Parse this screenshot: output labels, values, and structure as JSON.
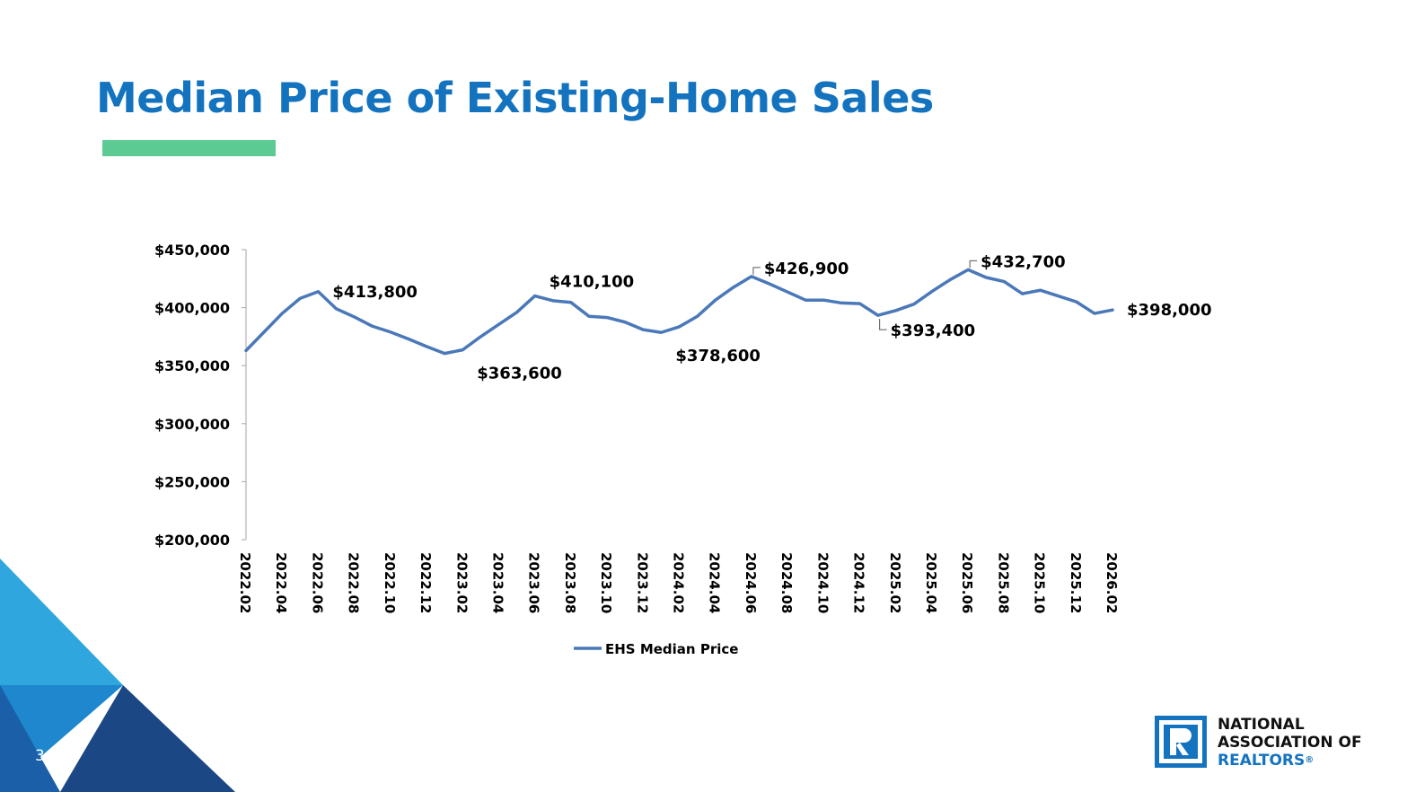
{
  "slide": {
    "title": "Median Price of Existing-Home Sales",
    "number": "3",
    "colors": {
      "title": "#1473bf",
      "accent": "#5ccb93",
      "series": "#4a78b9",
      "corner_light": "#2fa7de",
      "corner_mid": "#1e87cd",
      "corner_dark": "#1c4785"
    }
  },
  "logo": {
    "line1": "NATIONAL",
    "line2": "ASSOCIATION OF",
    "line3": "REALTORS",
    "registered": "®",
    "icon": "realtor-r-icon"
  },
  "chart_data": {
    "type": "line",
    "title": "",
    "xlabel": "",
    "ylabel": "",
    "ylim": [
      200000,
      450000
    ],
    "yticks": [
      200000,
      250000,
      300000,
      350000,
      400000,
      450000
    ],
    "ytick_labels": [
      "$200,000",
      "$250,000",
      "$300,000",
      "$350,000",
      "$400,000",
      "$450,000"
    ],
    "x": [
      "2022.02",
      "2022.03",
      "2022.04",
      "2022.05",
      "2022.06",
      "2022.07",
      "2022.08",
      "2022.09",
      "2022.10",
      "2022.11",
      "2022.12",
      "2023.01",
      "2023.02",
      "2023.03",
      "2023.04",
      "2023.05",
      "2023.06",
      "2023.07",
      "2023.08",
      "2023.09",
      "2023.10",
      "2023.11",
      "2023.12",
      "2024.01",
      "2024.02",
      "2024.03",
      "2024.04",
      "2024.05",
      "2024.06",
      "2024.07",
      "2024.08",
      "2024.09",
      "2024.10",
      "2024.11",
      "2024.12",
      "2025.01",
      "2025.02",
      "2025.03",
      "2025.04",
      "2025.05",
      "2025.06",
      "2025.07",
      "2025.08",
      "2025.09",
      "2025.10",
      "2025.11",
      "2025.12",
      "2026.01",
      "2026.02"
    ],
    "xtick_labels": [
      "2022.02",
      "2022.04",
      "2022.06",
      "2022.08",
      "2022.10",
      "2022.12",
      "2023.02",
      "2023.04",
      "2023.06",
      "2023.08",
      "2023.10",
      "2023.12",
      "2024.02",
      "2024.04",
      "2024.06",
      "2024.08",
      "2024.10",
      "2024.12",
      "2025.02",
      "2025.04",
      "2025.06",
      "2025.08",
      "2025.10",
      "2025.12",
      "2026.02"
    ],
    "series": [
      {
        "name": "EHS Median Price",
        "values": [
          363000,
          379000,
          395000,
          408000,
          413800,
          399000,
          392000,
          384000,
          379000,
          373000,
          366500,
          360500,
          363600,
          375000,
          385500,
          396000,
          410100,
          406000,
          404500,
          392500,
          391500,
          387500,
          381000,
          378600,
          383500,
          392500,
          406500,
          417500,
          426900,
          420500,
          413500,
          406500,
          406500,
          404000,
          403500,
          393400,
          397500,
          403000,
          414000,
          424000,
          432700,
          426000,
          422500,
          412000,
          415000,
          410000,
          405000,
          395000,
          398000
        ]
      }
    ],
    "annotations": [
      {
        "text": "$413,800",
        "x_index": 4,
        "position": "right",
        "leader": false
      },
      {
        "text": "$363,600",
        "x_index": 12,
        "position": "below-right",
        "leader": false
      },
      {
        "text": "$410,100",
        "x_index": 16,
        "position": "above-right",
        "leader": false
      },
      {
        "text": "$378,600",
        "x_index": 23,
        "position": "below-right",
        "leader": false
      },
      {
        "text": "$426,900",
        "x_index": 28,
        "position": "above-right",
        "leader": true
      },
      {
        "text": "$393,400",
        "x_index": 35,
        "position": "below-right",
        "leader": true
      },
      {
        "text": "$432,700",
        "x_index": 40,
        "position": "above-right",
        "leader": true
      },
      {
        "text": "$398,000",
        "x_index": 48,
        "position": "right",
        "leader": false
      }
    ],
    "legend": {
      "label": "EHS Median Price",
      "position": "bottom"
    },
    "grid": false
  }
}
